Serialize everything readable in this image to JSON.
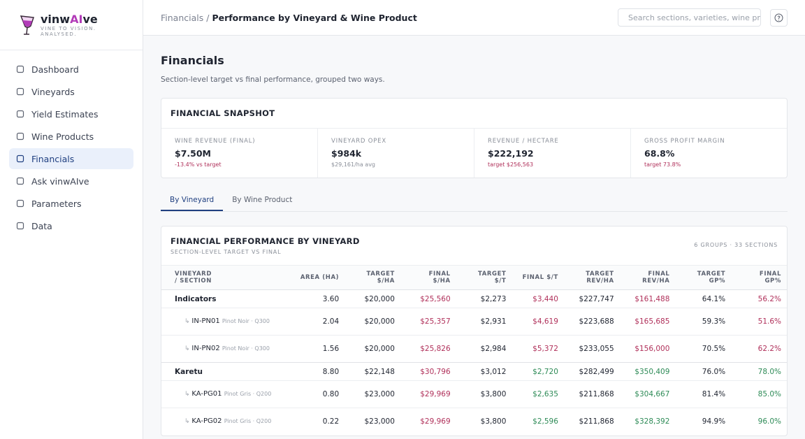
{
  "brand": {
    "name": [
      "vinw",
      "AI",
      "ve"
    ],
    "tagline": "VINE TO VISION. ANALYSED."
  },
  "nav": [
    "Dashboard",
    "Vineyards",
    "Yield Estimates",
    "Wine Products",
    "Financials",
    "Ask vinwAIve",
    "Parameters",
    "Data"
  ],
  "breadcrumb": {
    "parent": "Financials",
    "separator": "/",
    "current": "Performance by Vineyard & Wine Product"
  },
  "search_placeholder": "Search sections, varieties, wine products",
  "page": {
    "title": "Financials",
    "subtitle": "Section-level target vs final performance, grouped two ways."
  },
  "snapshot": {
    "title": "FINANCIAL SNAPSHOT",
    "cards": [
      {
        "label": "WINE REVENUE (FINAL)",
        "value": "$7.50M",
        "note": "-13.4% vs target"
      },
      {
        "label": "VINEYARD OPEX",
        "value": "$984k",
        "note": "$29,161/ha avg"
      },
      {
        "label": "REVENUE / HECTARE",
        "value": "$222,192",
        "note": "target $256,563"
      },
      {
        "label": "GROSS PROFIT MARGIN",
        "value": "68.8%",
        "note": "target 73.8%"
      }
    ]
  },
  "tabs": [
    "By Vineyard",
    "By Wine Product"
  ],
  "table": {
    "title": "FINANCIAL PERFORMANCE BY VINEYARD",
    "subtitle": "SECTION-LEVEL TARGET VS FINAL",
    "meta": "6 GROUPS · 33 SECTIONS",
    "columns": [
      "VINEYARD / SECTION",
      "AREA (HA)",
      "TARGET $/HA",
      "FINAL $/HA",
      "TARGET $/T",
      "FINAL $/T",
      "TARGET REV/HA",
      "FINAL REV/HA",
      "TARGET GP%",
      "FINAL GP%"
    ],
    "rows": [
      {
        "name": "Indicators",
        "cells": [
          "3.60",
          "$20,000",
          "$25,560",
          "$2,273",
          "$3,440",
          "$227,747",
          "$161,488",
          "64.1%",
          "56.2%"
        ]
      },
      {
        "code": "IN-PN01",
        "desc": "Pinot Noir · Q300",
        "cells": [
          "2.04",
          "$20,000",
          "$25,357",
          "$2,931",
          "$4,619",
          "$223,688",
          "$165,685",
          "59.3%",
          "51.6%"
        ]
      },
      {
        "code": "IN-PN02",
        "desc": "Pinot Noir · Q300",
        "cells": [
          "1.56",
          "$20,000",
          "$25,826",
          "$2,984",
          "$5,372",
          "$233,055",
          "$156,000",
          "70.5%",
          "62.2%"
        ]
      },
      {
        "name": "Karetu",
        "cells": [
          "8.80",
          "$22,148",
          "$30,796",
          "$3,012",
          "$2,720",
          "$282,499",
          "$350,409",
          "76.0%",
          "78.0%"
        ]
      },
      {
        "code": "KA-PG01",
        "desc": "Pinot Gris · Q200",
        "cells": [
          "0.80",
          "$23,000",
          "$29,969",
          "$3,800",
          "$2,635",
          "$211,868",
          "$304,667",
          "81.4%",
          "85.0%"
        ]
      },
      {
        "code": "KA-PG02",
        "desc": "Pinot Gris · Q200",
        "cells": [
          "0.22",
          "$23,000",
          "$29,969",
          "$3,800",
          "$2,596",
          "$211,868",
          "$328,392",
          "94.9%",
          "96.0%"
        ]
      }
    ]
  }
}
